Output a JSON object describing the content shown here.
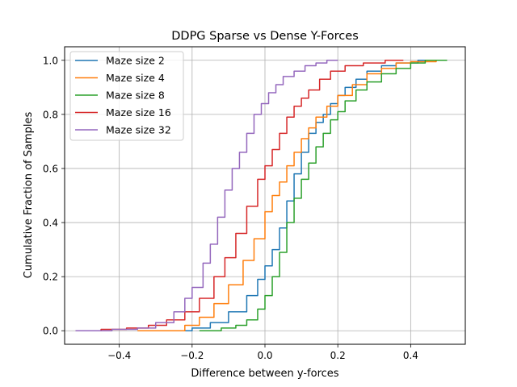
{
  "chart_data": {
    "type": "line",
    "title": "DDPG Sparse vs Dense Y-Forces",
    "xlabel": "Difference between y-forces",
    "ylabel": "Cumulative Fraction of Samples",
    "xlim": [
      -0.55,
      0.55
    ],
    "ylim": [
      -0.05,
      1.05
    ],
    "xticks": [
      -0.4,
      -0.2,
      0.0,
      0.2,
      0.4
    ],
    "xtick_labels": [
      "−0.4",
      "−0.2",
      "0.0",
      "0.2",
      "0.4"
    ],
    "yticks": [
      0.0,
      0.2,
      0.4,
      0.6,
      0.8,
      1.0
    ],
    "ytick_labels": [
      "0.0",
      "0.2",
      "0.4",
      "0.6",
      "0.8",
      "1.0"
    ],
    "grid": true,
    "legend_position": "top-left",
    "series": [
      {
        "name": "Maze size 2",
        "color": "#1f77b4",
        "points": [
          [
            -0.25,
            0.0
          ],
          [
            -0.2,
            0.01
          ],
          [
            -0.15,
            0.03
          ],
          [
            -0.1,
            0.07
          ],
          [
            -0.05,
            0.13
          ],
          [
            -0.02,
            0.19
          ],
          [
            0.0,
            0.24
          ],
          [
            0.02,
            0.3
          ],
          [
            0.04,
            0.38
          ],
          [
            0.06,
            0.48
          ],
          [
            0.08,
            0.58
          ],
          [
            0.1,
            0.66
          ],
          [
            0.12,
            0.73
          ],
          [
            0.14,
            0.77
          ],
          [
            0.16,
            0.8
          ],
          [
            0.18,
            0.84
          ],
          [
            0.2,
            0.87
          ],
          [
            0.22,
            0.9
          ],
          [
            0.25,
            0.93
          ],
          [
            0.28,
            0.96
          ],
          [
            0.32,
            0.98
          ],
          [
            0.36,
            0.99
          ],
          [
            0.42,
            1.0
          ],
          [
            0.5,
            1.0
          ]
        ]
      },
      {
        "name": "Maze size 4",
        "color": "#ff7f0e",
        "points": [
          [
            -0.35,
            0.0
          ],
          [
            -0.28,
            0.0
          ],
          [
            -0.22,
            0.02
          ],
          [
            -0.18,
            0.05
          ],
          [
            -0.14,
            0.1
          ],
          [
            -0.1,
            0.17
          ],
          [
            -0.06,
            0.26
          ],
          [
            -0.03,
            0.34
          ],
          [
            0.0,
            0.44
          ],
          [
            0.02,
            0.5
          ],
          [
            0.04,
            0.55
          ],
          [
            0.06,
            0.61
          ],
          [
            0.08,
            0.66
          ],
          [
            0.1,
            0.71
          ],
          [
            0.12,
            0.75
          ],
          [
            0.14,
            0.79
          ],
          [
            0.17,
            0.83
          ],
          [
            0.2,
            0.87
          ],
          [
            0.24,
            0.91
          ],
          [
            0.28,
            0.95
          ],
          [
            0.32,
            0.97
          ],
          [
            0.36,
            0.99
          ],
          [
            0.4,
            0.995
          ],
          [
            0.47,
            1.0
          ]
        ]
      },
      {
        "name": "Maze size 8",
        "color": "#2ca02c",
        "points": [
          [
            -0.18,
            0.0
          ],
          [
            -0.12,
            0.01
          ],
          [
            -0.08,
            0.02
          ],
          [
            -0.05,
            0.04
          ],
          [
            -0.02,
            0.08
          ],
          [
            0.0,
            0.13
          ],
          [
            0.02,
            0.2
          ],
          [
            0.04,
            0.29
          ],
          [
            0.06,
            0.4
          ],
          [
            0.08,
            0.49
          ],
          [
            0.1,
            0.56
          ],
          [
            0.12,
            0.62
          ],
          [
            0.14,
            0.68
          ],
          [
            0.16,
            0.73
          ],
          [
            0.18,
            0.78
          ],
          [
            0.2,
            0.81
          ],
          [
            0.22,
            0.85
          ],
          [
            0.25,
            0.89
          ],
          [
            0.28,
            0.92
          ],
          [
            0.32,
            0.95
          ],
          [
            0.36,
            0.97
          ],
          [
            0.4,
            0.99
          ],
          [
            0.44,
            1.0
          ],
          [
            0.5,
            1.0
          ]
        ]
      },
      {
        "name": "Maze size 16",
        "color": "#d62728",
        "points": [
          [
            -0.52,
            0.0
          ],
          [
            -0.45,
            0.005
          ],
          [
            -0.38,
            0.01
          ],
          [
            -0.32,
            0.02
          ],
          [
            -0.27,
            0.04
          ],
          [
            -0.22,
            0.07
          ],
          [
            -0.18,
            0.12
          ],
          [
            -0.14,
            0.2
          ],
          [
            -0.11,
            0.27
          ],
          [
            -0.08,
            0.36
          ],
          [
            -0.05,
            0.46
          ],
          [
            -0.02,
            0.56
          ],
          [
            0.0,
            0.61
          ],
          [
            0.02,
            0.67
          ],
          [
            0.04,
            0.73
          ],
          [
            0.06,
            0.79
          ],
          [
            0.08,
            0.83
          ],
          [
            0.1,
            0.86
          ],
          [
            0.12,
            0.89
          ],
          [
            0.15,
            0.93
          ],
          [
            0.18,
            0.96
          ],
          [
            0.22,
            0.98
          ],
          [
            0.27,
            0.99
          ],
          [
            0.33,
            1.0
          ],
          [
            0.38,
            1.0
          ]
        ]
      },
      {
        "name": "Maze size 32",
        "color": "#9467bd",
        "points": [
          [
            -0.52,
            0.0
          ],
          [
            -0.42,
            0.005
          ],
          [
            -0.35,
            0.01
          ],
          [
            -0.3,
            0.03
          ],
          [
            -0.25,
            0.07
          ],
          [
            -0.22,
            0.12
          ],
          [
            -0.2,
            0.16
          ],
          [
            -0.17,
            0.25
          ],
          [
            -0.15,
            0.32
          ],
          [
            -0.13,
            0.42
          ],
          [
            -0.11,
            0.52
          ],
          [
            -0.09,
            0.6
          ],
          [
            -0.07,
            0.66
          ],
          [
            -0.05,
            0.73
          ],
          [
            -0.03,
            0.8
          ],
          [
            -0.01,
            0.84
          ],
          [
            0.01,
            0.88
          ],
          [
            0.03,
            0.91
          ],
          [
            0.05,
            0.94
          ],
          [
            0.08,
            0.96
          ],
          [
            0.11,
            0.98
          ],
          [
            0.14,
            0.99
          ],
          [
            0.17,
            1.0
          ],
          [
            0.2,
            1.0
          ]
        ]
      }
    ]
  }
}
